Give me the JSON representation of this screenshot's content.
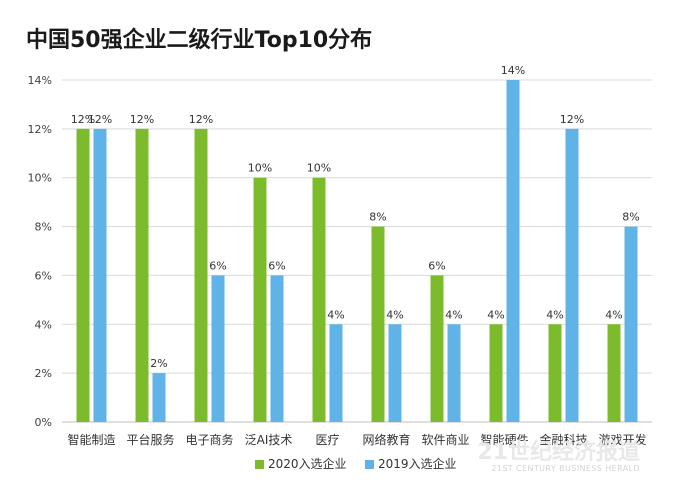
{
  "chart_data": {
    "type": "bar",
    "title": "中国50强企业二级行业Top10分布",
    "categories": [
      "智能制造",
      "平台服务",
      "电子商务",
      "泛AI技术",
      "医疗",
      "网络教育",
      "软件商业",
      "智能硬件",
      "金融科技",
      "游戏开发"
    ],
    "series": [
      {
        "name": "2020入选企业",
        "values": [
          12,
          12,
          12,
          10,
          10,
          8,
          6,
          4,
          4,
          4
        ],
        "color": "#7cbb2b"
      },
      {
        "name": "2019入选企业",
        "values": [
          12,
          2,
          6,
          6,
          4,
          4,
          4,
          14,
          12,
          8
        ],
        "color": "#5fb3e6"
      }
    ],
    "ylim": [
      0,
      14
    ],
    "yticks": [
      "0%",
      "2%",
      "4%",
      "6%",
      "8%",
      "10%",
      "12%",
      "14%"
    ],
    "y_unit": "%",
    "legend_position": "bottom",
    "grid": true
  },
  "watermark": {
    "text_cn": "21世纪经济报道",
    "text_en": "21ST CENTURY BUSINESS HERALD"
  }
}
